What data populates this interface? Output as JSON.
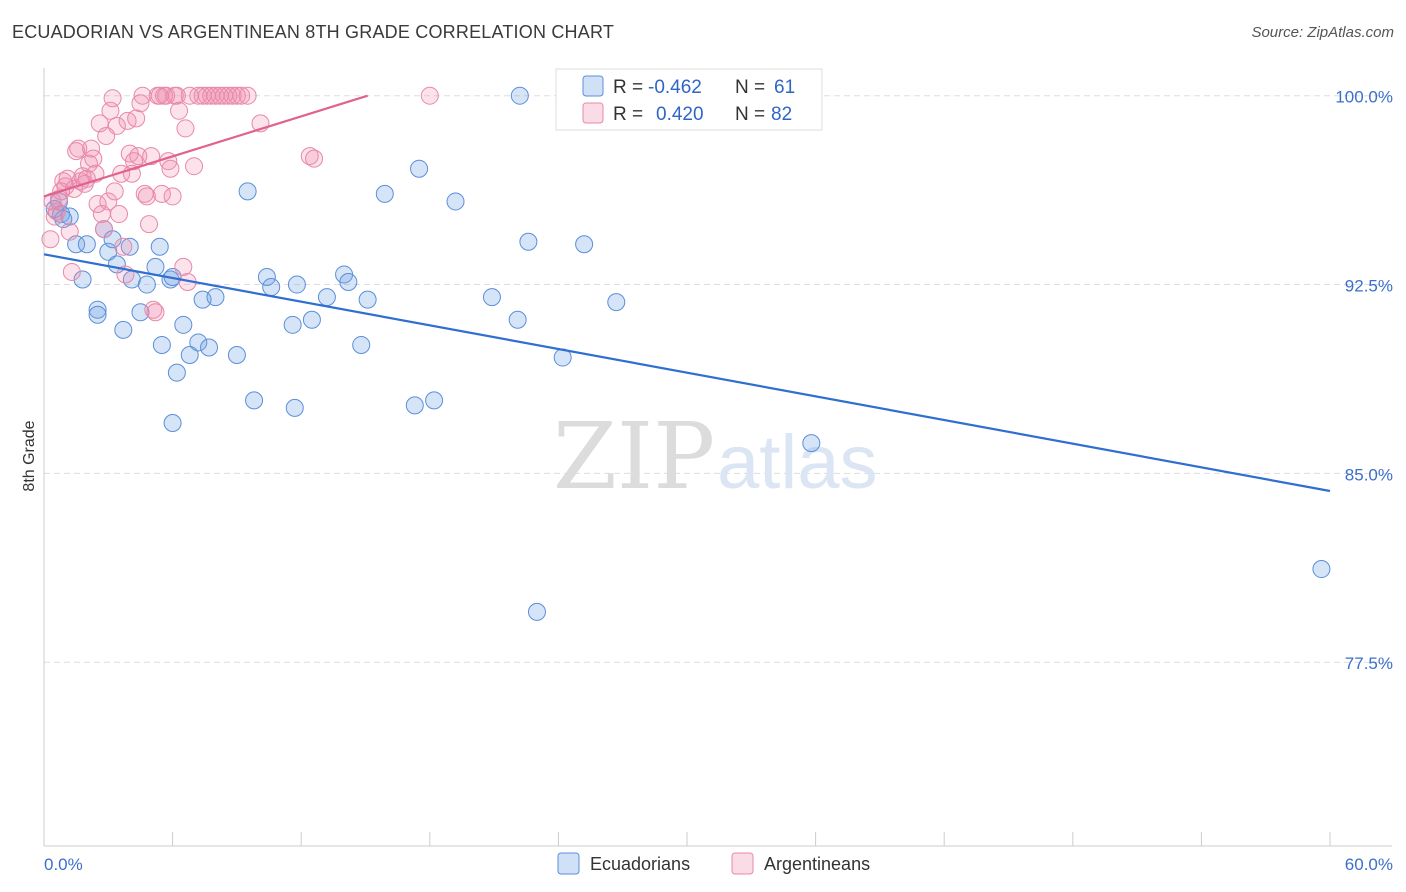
{
  "title": "ECUADORIAN VS ARGENTINEAN 8TH GRADE CORRELATION CHART",
  "source": "Source: ZipAtlas.com",
  "watermark": {
    "zip": "ZIP",
    "atlas": "atlas"
  },
  "colors": {
    "ecuadorian_fill": "rgba(120,165,230,0.30)",
    "ecuadorian_stroke": "#5b8fd9",
    "ecuadorian_line": "#2f6fd1",
    "argentinean_fill": "rgba(240,140,175,0.25)",
    "argentinean_stroke": "#e889a9",
    "argentinean_line": "#e0628e",
    "tick_label": "#3b6fc9",
    "grid": "#dddddd"
  },
  "legend": {
    "rows": [
      {
        "r_label": "R =",
        "r_value": "-0.462",
        "n_label": "N =",
        "n_value": "61"
      },
      {
        "r_label": "R =",
        "r_value": "0.420",
        "n_label": "N =",
        "n_value": "82"
      }
    ]
  },
  "chart_data": {
    "type": "scatter",
    "title": "ECUADORIAN VS ARGENTINEAN 8TH GRADE CORRELATION CHART",
    "xlabel": "",
    "ylabel": "8th Grade",
    "xlim": [
      0,
      60
    ],
    "ylim": [
      70.2,
      101.1
    ],
    "x_tick_labels": [
      "0.0%",
      "60.0%"
    ],
    "y_ticks": [
      77.5,
      85.0,
      92.5,
      100.0
    ],
    "y_tick_labels": [
      "77.5%",
      "85.0%",
      "92.5%",
      "100.0%"
    ],
    "legend_bottom": [
      "Ecuadorians",
      "Argentineans"
    ],
    "series": [
      {
        "name": "Ecuadorians",
        "r": -0.462,
        "n": 61,
        "trend": {
          "x": [
            0,
            60
          ],
          "y": [
            93.7,
            84.3
          ]
        },
        "points": [
          [
            0.5,
            95.5
          ],
          [
            0.8,
            95.3
          ],
          [
            0.7,
            95.8
          ],
          [
            1.2,
            95.2
          ],
          [
            0.9,
            95.1
          ],
          [
            1.5,
            94.1
          ],
          [
            2.0,
            94.1
          ],
          [
            1.8,
            92.7
          ],
          [
            2.5,
            91.5
          ],
          [
            2.8,
            94.7
          ],
          [
            3.0,
            93.8
          ],
          [
            3.2,
            94.3
          ],
          [
            3.4,
            93.3
          ],
          [
            3.7,
            90.7
          ],
          [
            4.0,
            94.0
          ],
          [
            4.1,
            92.7
          ],
          [
            4.5,
            91.4
          ],
          [
            4.8,
            92.5
          ],
          [
            5.2,
            93.2
          ],
          [
            5.4,
            94.0
          ],
          [
            5.5,
            90.1
          ],
          [
            5.9,
            92.7
          ],
          [
            6.0,
            87.0
          ],
          [
            6.0,
            92.8
          ],
          [
            6.2,
            89.0
          ],
          [
            6.5,
            90.9
          ],
          [
            6.8,
            89.7
          ],
          [
            7.2,
            90.2
          ],
          [
            7.4,
            91.9
          ],
          [
            7.7,
            90.0
          ],
          [
            8.0,
            92.0
          ],
          [
            9.0,
            89.7
          ],
          [
            9.5,
            96.2
          ],
          [
            9.8,
            87.9
          ],
          [
            10.4,
            92.8
          ],
          [
            10.6,
            92.4
          ],
          [
            11.6,
            90.9
          ],
          [
            11.7,
            87.6
          ],
          [
            11.8,
            92.5
          ],
          [
            12.5,
            91.1
          ],
          [
            13.2,
            92.0
          ],
          [
            14.0,
            92.9
          ],
          [
            14.2,
            92.6
          ],
          [
            14.8,
            90.1
          ],
          [
            15.1,
            91.9
          ],
          [
            15.9,
            96.1
          ],
          [
            17.3,
            87.7
          ],
          [
            17.5,
            97.1
          ],
          [
            18.2,
            87.9
          ],
          [
            19.2,
            95.8
          ],
          [
            20.9,
            92.0
          ],
          [
            22.1,
            91.1
          ],
          [
            22.2,
            100.0
          ],
          [
            22.6,
            94.2
          ],
          [
            23.0,
            79.5
          ],
          [
            24.2,
            89.6
          ],
          [
            25.2,
            94.1
          ],
          [
            26.7,
            91.8
          ],
          [
            35.8,
            86.2
          ],
          [
            59.6,
            81.2
          ],
          [
            2.5,
            91.3
          ]
        ]
      },
      {
        "name": "Argentineans",
        "r": 0.42,
        "n": 82,
        "trend": {
          "x": [
            0,
            15.1
          ],
          "y": [
            96.0,
            100.0
          ]
        },
        "points": [
          [
            0.3,
            94.3
          ],
          [
            0.4,
            95.8
          ],
          [
            0.5,
            95.2
          ],
          [
            0.6,
            95.4
          ],
          [
            0.7,
            95.9
          ],
          [
            0.8,
            96.2
          ],
          [
            0.9,
            96.6
          ],
          [
            1.0,
            96.4
          ],
          [
            1.1,
            96.7
          ],
          [
            1.2,
            94.6
          ],
          [
            1.3,
            93.0
          ],
          [
            1.4,
            96.3
          ],
          [
            1.5,
            97.8
          ],
          [
            1.6,
            97.9
          ],
          [
            1.7,
            96.6
          ],
          [
            1.8,
            96.8
          ],
          [
            1.9,
            96.5
          ],
          [
            2.0,
            96.7
          ],
          [
            2.1,
            97.3
          ],
          [
            2.2,
            97.9
          ],
          [
            2.3,
            97.5
          ],
          [
            2.4,
            96.9
          ],
          [
            2.5,
            95.7
          ],
          [
            2.6,
            98.9
          ],
          [
            2.7,
            95.3
          ],
          [
            2.8,
            94.7
          ],
          [
            2.9,
            98.4
          ],
          [
            3.0,
            95.8
          ],
          [
            3.1,
            99.4
          ],
          [
            3.2,
            99.9
          ],
          [
            3.3,
            96.2
          ],
          [
            3.4,
            98.8
          ],
          [
            3.5,
            95.3
          ],
          [
            3.6,
            96.9
          ],
          [
            3.7,
            94.0
          ],
          [
            3.8,
            92.9
          ],
          [
            3.9,
            99.0
          ],
          [
            4.0,
            97.7
          ],
          [
            4.1,
            96.9
          ],
          [
            4.2,
            97.4
          ],
          [
            4.3,
            99.1
          ],
          [
            4.4,
            97.6
          ],
          [
            4.5,
            99.7
          ],
          [
            4.6,
            100.0
          ],
          [
            4.7,
            96.1
          ],
          [
            4.8,
            96.0
          ],
          [
            4.9,
            94.9
          ],
          [
            5.0,
            97.6
          ],
          [
            5.1,
            91.5
          ],
          [
            5.2,
            91.4
          ],
          [
            5.3,
            100.0
          ],
          [
            5.4,
            100.0
          ],
          [
            5.5,
            96.1
          ],
          [
            5.6,
            100.0
          ],
          [
            5.7,
            100.0
          ],
          [
            5.8,
            97.4
          ],
          [
            5.9,
            97.1
          ],
          [
            6.0,
            96.0
          ],
          [
            6.1,
            100.0
          ],
          [
            6.2,
            100.0
          ],
          [
            6.3,
            99.4
          ],
          [
            6.5,
            93.2
          ],
          [
            6.6,
            98.7
          ],
          [
            6.7,
            92.6
          ],
          [
            6.8,
            100.0
          ],
          [
            7.0,
            97.2
          ],
          [
            7.2,
            100.0
          ],
          [
            7.4,
            100.0
          ],
          [
            7.6,
            100.0
          ],
          [
            7.8,
            100.0
          ],
          [
            8.0,
            100.0
          ],
          [
            8.2,
            100.0
          ],
          [
            8.4,
            100.0
          ],
          [
            8.6,
            100.0
          ],
          [
            8.8,
            100.0
          ],
          [
            9.0,
            100.0
          ],
          [
            9.2,
            100.0
          ],
          [
            9.5,
            100.0
          ],
          [
            10.1,
            98.9
          ],
          [
            12.4,
            97.6
          ],
          [
            12.6,
            97.5
          ],
          [
            18.0,
            100.0
          ]
        ]
      }
    ]
  }
}
